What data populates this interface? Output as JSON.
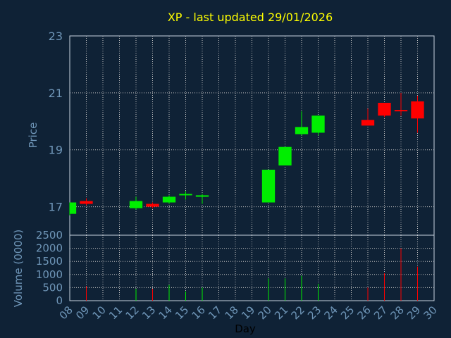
{
  "chart_data": [
    {
      "type": "candlestick",
      "title": "XP - last updated 29/01/2026",
      "ylabel": "Price",
      "xlabel": "Day",
      "ylim": [
        16,
        23
      ],
      "yticks": [
        17,
        19,
        21,
        23
      ],
      "xlim": [
        8,
        30
      ],
      "xticks": [
        "08",
        "09",
        "10",
        "11",
        "12",
        "13",
        "14",
        "15",
        "16",
        "17",
        "18",
        "19",
        "20",
        "21",
        "22",
        "23",
        "24",
        "25",
        "26",
        "27",
        "28",
        "29",
        "30"
      ],
      "grid": true,
      "colors": {
        "up": "#00ee00",
        "down": "#ff0000",
        "title": "#ffff00",
        "axis_text": "#6f96b8",
        "grid": "#c0c0c0",
        "background": "#0f2236"
      },
      "candles": [
        {
          "day": 8,
          "open": 16.75,
          "high": 17.15,
          "low": 16.7,
          "close": 17.15
        },
        {
          "day": 9,
          "open": 17.2,
          "high": 17.3,
          "low": 17.05,
          "close": 17.1
        },
        {
          "day": 12,
          "open": 16.95,
          "high": 17.35,
          "low": 16.9,
          "close": 17.2
        },
        {
          "day": 13,
          "open": 17.1,
          "high": 17.15,
          "low": 16.95,
          "close": 17.0
        },
        {
          "day": 14,
          "open": 17.15,
          "high": 17.4,
          "low": 17.1,
          "close": 17.35
        },
        {
          "day": 15,
          "open": 17.4,
          "high": 17.55,
          "low": 17.25,
          "close": 17.45
        },
        {
          "day": 16,
          "open": 17.35,
          "high": 17.45,
          "low": 17.1,
          "close": 17.4
        },
        {
          "day": 20,
          "open": 17.15,
          "high": 18.3,
          "low": 17.15,
          "close": 18.3
        },
        {
          "day": 21,
          "open": 18.45,
          "high": 19.1,
          "low": 18.45,
          "close": 19.1
        },
        {
          "day": 22,
          "open": 19.55,
          "high": 20.35,
          "low": 19.5,
          "close": 19.8
        },
        {
          "day": 23,
          "open": 19.6,
          "high": 20.2,
          "low": 19.5,
          "close": 20.2
        },
        {
          "day": 26,
          "open": 20.05,
          "high": 20.45,
          "low": 19.85,
          "close": 19.85
        },
        {
          "day": 27,
          "open": 20.65,
          "high": 20.65,
          "low": 20.15,
          "close": 20.2
        },
        {
          "day": 28,
          "open": 20.4,
          "high": 21.0,
          "low": 20.2,
          "close": 20.35
        },
        {
          "day": 29,
          "open": 20.7,
          "high": 20.9,
          "low": 19.6,
          "close": 20.1
        }
      ]
    },
    {
      "type": "bar",
      "ylabel": "Volume (0000)",
      "xlabel": "Day",
      "ylim": [
        0,
        2500
      ],
      "yticks": [
        0,
        500,
        1000,
        1500,
        2000,
        2500
      ],
      "grid": true,
      "volumes": [
        {
          "day": 9,
          "value": 550,
          "direction": "down"
        },
        {
          "day": 12,
          "value": 450,
          "direction": "up"
        },
        {
          "day": 13,
          "value": 450,
          "direction": "down"
        },
        {
          "day": 14,
          "value": 600,
          "direction": "up"
        },
        {
          "day": 15,
          "value": 350,
          "direction": "up"
        },
        {
          "day": 16,
          "value": 500,
          "direction": "up"
        },
        {
          "day": 20,
          "value": 850,
          "direction": "up"
        },
        {
          "day": 21,
          "value": 850,
          "direction": "up"
        },
        {
          "day": 22,
          "value": 950,
          "direction": "up"
        },
        {
          "day": 23,
          "value": 650,
          "direction": "up"
        },
        {
          "day": 26,
          "value": 500,
          "direction": "down"
        },
        {
          "day": 27,
          "value": 1050,
          "direction": "down"
        },
        {
          "day": 28,
          "value": 2000,
          "direction": "down"
        },
        {
          "day": 29,
          "value": 1300,
          "direction": "down"
        }
      ]
    }
  ]
}
